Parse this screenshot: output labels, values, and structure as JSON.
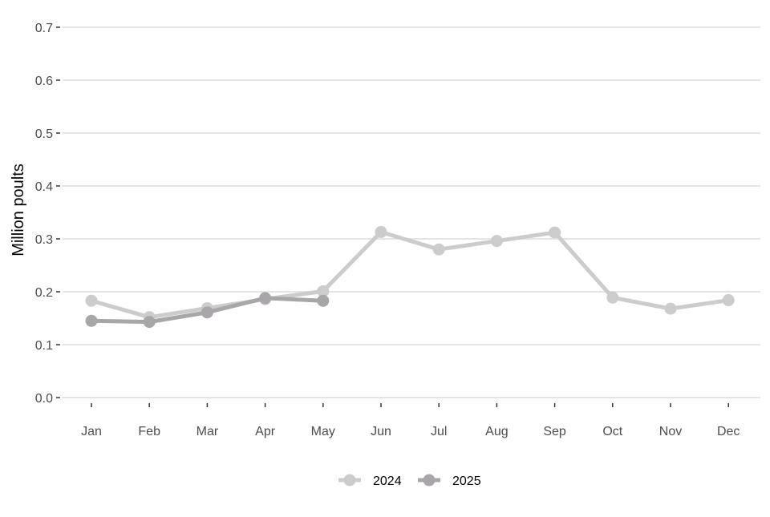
{
  "chart_data": {
    "type": "line",
    "title": "",
    "xlabel": "",
    "ylabel": "Million poults",
    "categories": [
      "Jan",
      "Feb",
      "Mar",
      "Apr",
      "May",
      "Jun",
      "Jul",
      "Aug",
      "Sep",
      "Oct",
      "Nov",
      "Dec"
    ],
    "ylim": [
      0,
      0.7
    ],
    "yticks": [
      "0.0",
      "0.1",
      "0.2",
      "0.3",
      "0.4",
      "0.5",
      "0.6",
      "0.7"
    ],
    "grid": "horizontal",
    "legend_position": "bottom",
    "series": [
      {
        "name": "2024",
        "color": "#cccccc",
        "values": [
          0.183,
          0.152,
          0.169,
          0.186,
          0.201,
          0.313,
          0.28,
          0.296,
          0.312,
          0.189,
          0.168,
          0.184
        ]
      },
      {
        "name": "2025",
        "color": "#a8a6a8",
        "values": [
          0.145,
          0.143,
          0.161,
          0.188,
          0.183,
          null,
          null,
          null,
          null,
          null,
          null,
          null
        ]
      }
    ]
  }
}
